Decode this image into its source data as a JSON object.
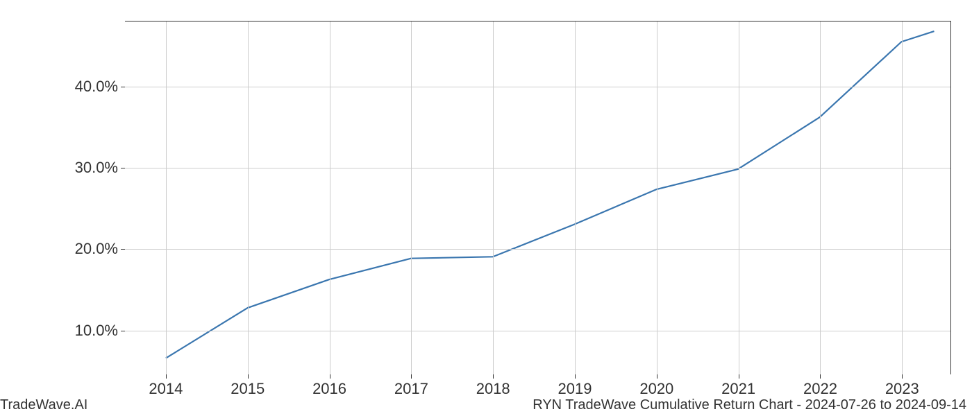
{
  "chart": {
    "type": "line",
    "x_values": [
      2014,
      2015,
      2016,
      2017,
      2018,
      2019,
      2020,
      2021,
      2022,
      2023,
      2023.4
    ],
    "y_values": [
      6.5,
      12.7,
      16.2,
      18.8,
      19.0,
      23.0,
      27.3,
      29.8,
      36.2,
      45.5,
      46.8
    ],
    "line_color": "#3a76af",
    "line_width": 2.2,
    "xlim": [
      2013.5,
      2023.6
    ],
    "ylim": [
      4.5,
      48
    ],
    "x_ticks": [
      2014,
      2015,
      2016,
      2017,
      2018,
      2019,
      2020,
      2021,
      2022,
      2023
    ],
    "x_tick_labels": [
      "2014",
      "2015",
      "2016",
      "2017",
      "2018",
      "2019",
      "2020",
      "2021",
      "2022",
      "2023"
    ],
    "y_ticks": [
      10,
      20,
      30,
      40
    ],
    "y_tick_labels": [
      "10.0%",
      "20.0%",
      "30.0%",
      "40.0%"
    ],
    "background_color": "#ffffff",
    "grid_color": "#cccccc",
    "tick_fontsize": 22,
    "tick_color": "#333333"
  },
  "footer": {
    "left": "TradeWave.AI",
    "right": "RYN TradeWave Cumulative Return Chart - 2024-07-26 to 2024-09-14",
    "fontsize": 20,
    "color": "#333333"
  }
}
